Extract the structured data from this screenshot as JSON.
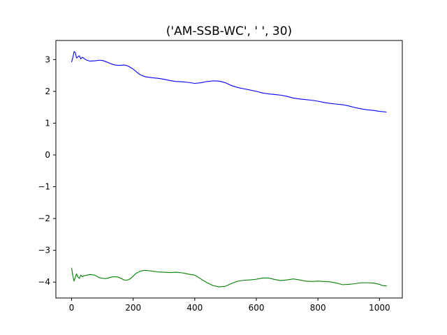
{
  "chart_data": {
    "type": "line",
    "title": "('AM-SSB-WC', '  ', 30)",
    "xlabel": "",
    "ylabel": "",
    "xlim": [
      -51,
      1074
    ],
    "ylim": [
      -4.5,
      3.6
    ],
    "xticks": [
      0,
      200,
      400,
      600,
      800,
      1000
    ],
    "yticks": [
      3,
      2,
      1,
      0,
      -1,
      -2,
      -3,
      -4
    ],
    "xtick_labels": [
      "0",
      "200",
      "400",
      "600",
      "800",
      "1000"
    ],
    "ytick_labels": [
      "3",
      "2",
      "1",
      "0",
      "−1",
      "−2",
      "−3",
      "−4"
    ],
    "grid": false,
    "legend": false,
    "series": [
      {
        "color": "#0000ff",
        "x": [
          0,
          5,
          8,
          12,
          16,
          20,
          25,
          30,
          35,
          40,
          45,
          50,
          60,
          75,
          90,
          100,
          110,
          120,
          130,
          140,
          150,
          160,
          170,
          180,
          190,
          200,
          210,
          220,
          230,
          240,
          260,
          280,
          300,
          320,
          340,
          360,
          380,
          400,
          420,
          440,
          460,
          480,
          500,
          520,
          540,
          560,
          580,
          600,
          620,
          640,
          660,
          680,
          700,
          720,
          740,
          760,
          780,
          800,
          820,
          840,
          860,
          880,
          900,
          920,
          940,
          960,
          980,
          1000,
          1023
        ],
        "values": [
          2.92,
          3.1,
          3.25,
          3.22,
          3.05,
          3.08,
          3.12,
          3.02,
          3.07,
          3.04,
          3.0,
          2.98,
          2.95,
          2.96,
          2.98,
          2.97,
          2.94,
          2.9,
          2.86,
          2.83,
          2.82,
          2.82,
          2.83,
          2.81,
          2.76,
          2.7,
          2.62,
          2.54,
          2.49,
          2.46,
          2.43,
          2.41,
          2.38,
          2.34,
          2.31,
          2.3,
          2.28,
          2.25,
          2.27,
          2.31,
          2.33,
          2.32,
          2.27,
          2.18,
          2.12,
          2.08,
          2.04,
          2.0,
          1.95,
          1.92,
          1.9,
          1.88,
          1.84,
          1.79,
          1.76,
          1.74,
          1.72,
          1.69,
          1.65,
          1.62,
          1.6,
          1.58,
          1.54,
          1.49,
          1.45,
          1.42,
          1.4,
          1.37,
          1.35
        ]
      },
      {
        "color": "#008000",
        "x": [
          0,
          4,
          8,
          12,
          16,
          20,
          25,
          30,
          35,
          40,
          50,
          60,
          75,
          90,
          100,
          110,
          120,
          130,
          140,
          150,
          160,
          170,
          180,
          190,
          200,
          210,
          220,
          230,
          240,
          260,
          280,
          300,
          320,
          340,
          360,
          380,
          400,
          420,
          440,
          460,
          480,
          500,
          520,
          540,
          560,
          580,
          600,
          620,
          640,
          660,
          680,
          700,
          720,
          740,
          760,
          780,
          800,
          820,
          840,
          860,
          880,
          900,
          920,
          940,
          960,
          980,
          1000,
          1010,
          1023
        ],
        "values": [
          -3.55,
          -3.8,
          -3.97,
          -3.85,
          -3.74,
          -3.83,
          -3.88,
          -3.78,
          -3.83,
          -3.8,
          -3.78,
          -3.76,
          -3.78,
          -3.86,
          -3.88,
          -3.89,
          -3.87,
          -3.84,
          -3.83,
          -3.84,
          -3.88,
          -3.93,
          -3.94,
          -3.9,
          -3.81,
          -3.72,
          -3.67,
          -3.64,
          -3.63,
          -3.65,
          -3.68,
          -3.69,
          -3.7,
          -3.69,
          -3.71,
          -3.75,
          -3.78,
          -3.9,
          -4.02,
          -4.11,
          -4.15,
          -4.13,
          -4.04,
          -3.97,
          -3.94,
          -3.93,
          -3.91,
          -3.87,
          -3.87,
          -3.92,
          -3.95,
          -3.93,
          -3.9,
          -3.93,
          -3.97,
          -3.98,
          -3.97,
          -3.98,
          -3.99,
          -4.03,
          -4.08,
          -4.07,
          -4.05,
          -4.02,
          -4.02,
          -4.03,
          -4.07,
          -4.11,
          -4.12
        ]
      }
    ]
  }
}
